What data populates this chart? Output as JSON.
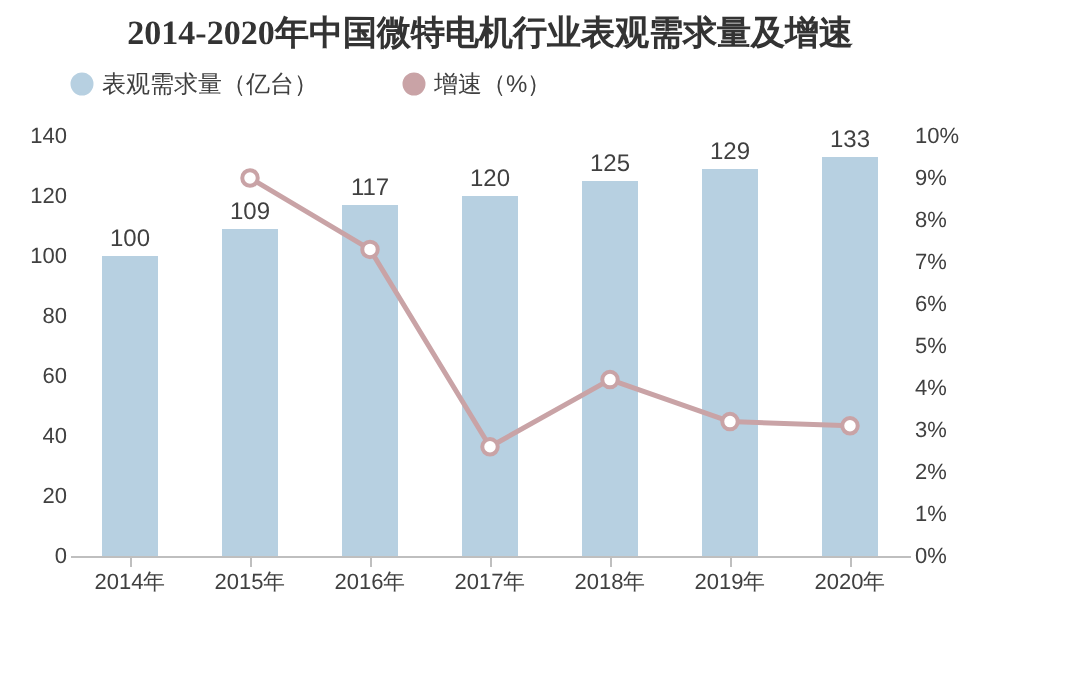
{
  "chart_data": {
    "type": "bar",
    "title": "2014-2020年中国微特电机行业表观需求量及增速",
    "categories": [
      "2014年",
      "2015年",
      "2016年",
      "2017年",
      "2018年",
      "2019年",
      "2020年"
    ],
    "series": [
      {
        "name": "表观需求量（亿台）",
        "color": "#b7d0e1",
        "values": [
          100,
          109,
          117,
          120,
          125,
          129,
          133
        ],
        "value_labels": [
          "100",
          "109",
          "117",
          "120",
          "125",
          "129",
          "133"
        ]
      },
      {
        "name": "增速（%）",
        "type": "line",
        "axis": "y2",
        "color": "#c9a3a6",
        "marker": "circle",
        "values": [
          null,
          9.0,
          7.3,
          2.6,
          4.2,
          3.2,
          3.1
        ]
      }
    ],
    "ylim": [
      0,
      140
    ],
    "yticks": [
      0,
      20,
      40,
      60,
      80,
      100,
      120,
      140
    ],
    "y2lim": [
      0,
      10
    ],
    "y2ticks": [
      {
        "value": 0,
        "label": "0%"
      },
      {
        "value": 1,
        "label": "1%"
      },
      {
        "value": 2,
        "label": "2%"
      },
      {
        "value": 3,
        "label": "3%"
      },
      {
        "value": 4,
        "label": "4%"
      },
      {
        "value": 5,
        "label": "5%"
      },
      {
        "value": 6,
        "label": "6%"
      },
      {
        "value": 7,
        "label": "7%"
      },
      {
        "value": 8,
        "label": "8%"
      },
      {
        "value": 9,
        "label": "9%"
      },
      {
        "value": 10,
        "label": "10%"
      }
    ],
    "grid": false,
    "legend": "top"
  }
}
